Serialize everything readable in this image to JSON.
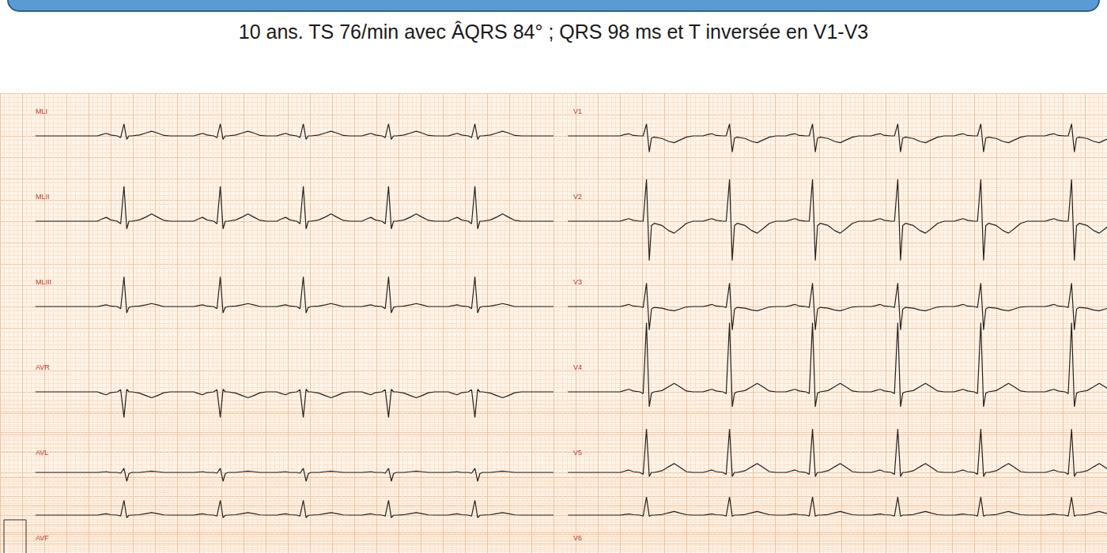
{
  "chart_data": {
    "type": "line",
    "title": "10 ans. TS 76/min avec ÂQRS 84° ; QRS 98 ms et T inversée en V1-V3",
    "xlim": [
      0,
      5
    ],
    "xticks": [
      0,
      0.2,
      0.4,
      0.6,
      0.8,
      1,
      1.2,
      1.4,
      1.6,
      1.8,
      2,
      2.2,
      2.4,
      2.6,
      2.8,
      3,
      3.2,
      3.4,
      3.6,
      3.8,
      4,
      4.2,
      4.4,
      4.6,
      4.8,
      5
    ],
    "grid": true,
    "tick_labels": false,
    "color": "#222222",
    "beat_offsets": [
      -0.24,
      -0.2,
      -0.16,
      -0.12,
      -0.06,
      -0.03,
      0,
      0.025,
      0.045,
      0.07,
      0.14,
      0.2,
      0.25,
      0.3,
      0.36,
      0.42
    ],
    "series": [
      {
        "name": "MLI",
        "ylim": [
          -1,
          1
        ],
        "yticks": [
          -1,
          -0.5,
          0,
          0.5,
          1
        ],
        "trace_range": [
          0.32,
          5
        ],
        "beat_times": [
          1.12,
          1.99,
          2.74,
          3.51,
          4.29
        ],
        "beat_values": [
          0,
          0.03,
          0.06,
          0.02,
          0,
          -0.04,
          0.28,
          -0.08,
          0,
          0,
          0.02,
          0.07,
          0.11,
          0.07,
          0.01,
          0
        ]
      },
      {
        "name": "MLII",
        "ylim": [
          -2,
          2
        ],
        "yticks": [
          -2,
          -1.5,
          -1,
          -0.5,
          0,
          0.5,
          1,
          1.5,
          2
        ],
        "trace_range": [
          0.32,
          5
        ],
        "beat_times": [
          1.12,
          1.99,
          2.74,
          3.51,
          4.29
        ],
        "beat_values": [
          0,
          0.05,
          0.09,
          0.03,
          0,
          -0.06,
          0.82,
          -0.18,
          0,
          0,
          0.03,
          0.1,
          0.17,
          0.1,
          0.02,
          0
        ]
      },
      {
        "name": "MLIII",
        "ylim": [
          -2,
          2
        ],
        "yticks": [
          -2,
          -1.5,
          -1,
          -0.5,
          0,
          0.5,
          1,
          1.5,
          2
        ],
        "trace_range": [
          0.32,
          5
        ],
        "beat_times": [
          1.12,
          1.99,
          2.74,
          3.51,
          4.29
        ],
        "beat_values": [
          0,
          0.02,
          0.04,
          0.01,
          0,
          -0.05,
          0.7,
          -0.15,
          -0.02,
          0,
          0.01,
          0.04,
          0.07,
          0.04,
          0,
          0
        ]
      },
      {
        "name": "AVR",
        "ylim": [
          -2,
          2
        ],
        "yticks": [
          -2,
          -1.5,
          -1,
          -0.5,
          0,
          0.5,
          1,
          1.5,
          2
        ],
        "trace_range": [
          0.32,
          5
        ],
        "beat_times": [
          1.12,
          1.99,
          2.74,
          3.51,
          4.29
        ],
        "beat_values": [
          0,
          -0.04,
          -0.07,
          -0.02,
          0,
          0.05,
          -0.6,
          0.06,
          0,
          0,
          -0.03,
          -0.09,
          -0.14,
          -0.09,
          -0.02,
          0
        ]
      },
      {
        "name": "AVL",
        "ylim": [
          -2,
          2
        ],
        "yticks": [
          -2,
          -1.5,
          -1,
          -0.5,
          0,
          0.5,
          1,
          1.5,
          2
        ],
        "trace_range": [
          0.32,
          5
        ],
        "beat_times": [
          1.12,
          1.99,
          2.74,
          3.51,
          4.29
        ],
        "beat_values": [
          0,
          0.01,
          0.02,
          0,
          0,
          -0.02,
          0.1,
          -0.22,
          -0.03,
          0,
          0,
          0.02,
          0.03,
          0.02,
          0,
          0
        ]
      },
      {
        "name": "AVF",
        "ylim": [
          -2,
          2
        ],
        "yticks": [
          -2,
          -1.5,
          -1,
          -0.5,
          0,
          0.5,
          1,
          1.5,
          2
        ],
        "trace_range": [
          0.32,
          5
        ],
        "beat_times": [
          1.12,
          1.99,
          2.74,
          3.51,
          4.29
        ],
        "beat_values": [
          0,
          0.04,
          0.07,
          0.02,
          0,
          -0.05,
          0.78,
          -0.14,
          -0.01,
          0,
          0.02,
          0.08,
          0.13,
          0.08,
          0.01,
          0
        ]
      },
      {
        "name": "V1",
        "ylim": [
          -1,
          1
        ],
        "yticks": [
          -1,
          -0.5,
          0,
          0.5,
          1
        ],
        "trace_range": [
          0.13,
          5
        ],
        "beat_times": [
          0.84,
          1.59,
          2.34,
          3.11,
          3.86,
          4.68
        ],
        "beat_values": [
          0,
          0.03,
          0.05,
          0.01,
          0,
          0,
          0.28,
          -0.38,
          -0.05,
          -0.03,
          -0.06,
          -0.13,
          -0.16,
          -0.1,
          -0.03,
          0
        ]
      },
      {
        "name": "V2",
        "ylim": [
          -2,
          2
        ],
        "yticks": [
          -2,
          -1.5,
          -1,
          -0.5,
          0,
          0.5,
          1,
          1.5,
          2
        ],
        "trace_range": [
          0.13,
          5
        ],
        "beat_times": [
          0.84,
          1.59,
          2.34,
          3.11,
          3.86,
          4.68
        ],
        "beat_values": [
          0,
          0.03,
          0.06,
          0.02,
          0,
          0,
          0.98,
          -0.92,
          -0.1,
          -0.05,
          -0.1,
          -0.22,
          -0.28,
          -0.18,
          -0.05,
          0
        ]
      },
      {
        "name": "V3",
        "ylim": [
          -2,
          2
        ],
        "yticks": [
          -2,
          -1.5,
          -1,
          -0.5,
          0,
          0.5,
          1,
          1.5,
          2
        ],
        "trace_range": [
          0.13,
          5
        ],
        "beat_times": [
          0.84,
          1.59,
          2.34,
          3.11,
          3.86,
          4.68
        ],
        "beat_values": [
          0,
          0.02,
          0.05,
          0.01,
          0,
          -0.02,
          0.55,
          -0.55,
          -0.06,
          -0.02,
          -0.04,
          -0.08,
          -0.1,
          -0.06,
          -0.01,
          0
        ]
      },
      {
        "name": "V4",
        "ylim": [
          -2,
          2
        ],
        "yticks": [
          -2,
          -1.5,
          -1,
          -0.5,
          0,
          0.5,
          1,
          1.5,
          2
        ],
        "trace_range": [
          0.13,
          5
        ],
        "beat_times": [
          0.84,
          1.59,
          2.34,
          3.11,
          3.86,
          4.68
        ],
        "beat_values": [
          0,
          0.03,
          0.06,
          0.02,
          0,
          -0.04,
          1.62,
          -0.35,
          -0.03,
          0,
          0.03,
          0.12,
          0.2,
          0.12,
          0.02,
          0
        ]
      },
      {
        "name": "V5",
        "ylim": [
          -2,
          2
        ],
        "yticks": [
          -2,
          -1.5,
          -1,
          -0.5,
          0,
          0.5,
          1,
          1.5,
          2
        ],
        "trace_range": [
          0.13,
          5
        ],
        "beat_times": [
          0.84,
          1.59,
          2.34,
          3.11,
          3.86,
          4.68
        ],
        "beat_values": [
          0,
          0.03,
          0.06,
          0.02,
          0,
          -0.05,
          1.08,
          -0.1,
          0,
          0,
          0.04,
          0.14,
          0.22,
          0.13,
          0.02,
          0
        ]
      },
      {
        "name": "V6",
        "ylim": [
          -2,
          2
        ],
        "yticks": [
          -2,
          -1.5,
          -1,
          -0.5,
          0,
          0.5,
          1,
          1.5,
          2
        ],
        "trace_range": [
          0.13,
          5
        ],
        "beat_times": [
          0.84,
          1.59,
          2.34,
          3.11,
          3.86,
          4.68
        ],
        "beat_values": [
          0,
          0.03,
          0.06,
          0.02,
          0,
          -0.05,
          0.95,
          -0.06,
          0,
          0,
          0.03,
          0.12,
          0.19,
          0.11,
          0.02,
          0
        ]
      }
    ]
  }
}
